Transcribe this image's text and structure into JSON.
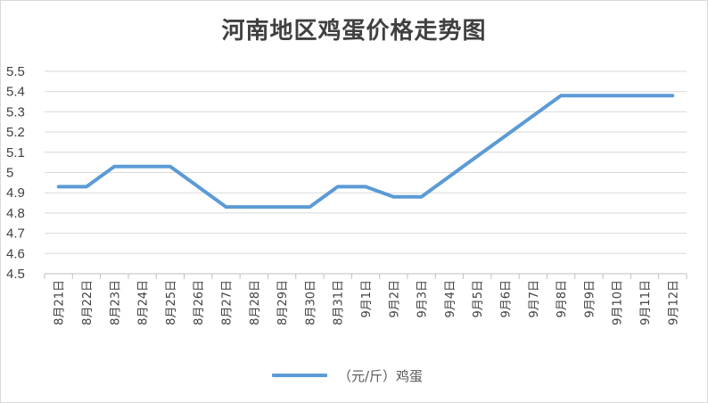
{
  "chart_data": {
    "type": "line",
    "title": "河南地区鸡蛋价格走势图",
    "categories": [
      "8月21日",
      "8月22日",
      "8月23日",
      "8月24日",
      "8月25日",
      "8月26日",
      "8月27日",
      "8月28日",
      "8月29日",
      "8月30日",
      "8月31日",
      "9月1日",
      "9月2日",
      "9月3日",
      "9月4日",
      "9月5日",
      "9月6日",
      "9月7日",
      "9月8日",
      "9月9日",
      "9月10日",
      "9月11日",
      "9月12日"
    ],
    "series": [
      {
        "name": "（元/斤）鸡蛋",
        "values": [
          4.93,
          4.93,
          5.03,
          5.03,
          5.03,
          4.93,
          4.83,
          4.83,
          4.83,
          4.83,
          4.93,
          4.93,
          4.88,
          4.88,
          4.98,
          5.08,
          5.18,
          5.28,
          5.38,
          5.38,
          5.38,
          5.38,
          5.38
        ],
        "color": "#5b9bd5"
      }
    ],
    "yticks": [
      "4.5",
      "4.6",
      "4.7",
      "4.8",
      "4.9",
      "5",
      "5.1",
      "5.2",
      "5.3",
      "5.4",
      "5.5"
    ],
    "ylim": [
      4.5,
      5.5
    ],
    "xlabel": "",
    "ylabel": "",
    "grid": true,
    "legend_position": "bottom"
  }
}
